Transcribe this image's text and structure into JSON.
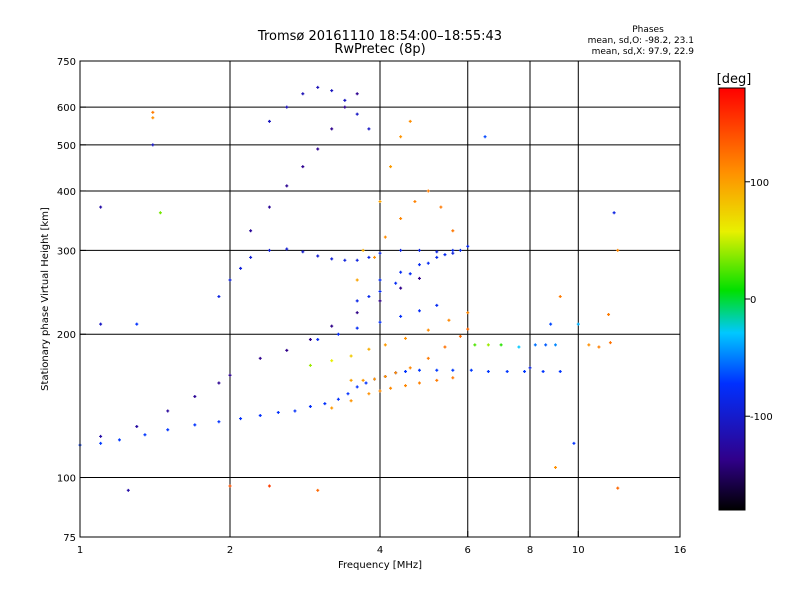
{
  "chart_data": {
    "type": "scatter",
    "title": "Tromsø 20161110 18:54:00–18:55:43",
    "subtitle": "RwPretec (8p)",
    "xlabel": "Frequency [MHz]",
    "ylabel": "Stationary phase Virtual Height [km]",
    "x_scale": "log",
    "y_scale": "log",
    "xlim": [
      1,
      16
    ],
    "ylim": [
      75,
      750
    ],
    "x_ticks": [
      1,
      2,
      4,
      6,
      8,
      10,
      16
    ],
    "x_tick_labels": [
      "1",
      "2",
      "4",
      "6",
      "8",
      "10",
      "16"
    ],
    "x_gridlines": [
      2,
      4,
      6,
      8,
      10
    ],
    "y_ticks": [
      75,
      100,
      200,
      300,
      400,
      500,
      600,
      750
    ],
    "y_tick_labels": [
      "75",
      "100",
      "200",
      "300",
      "400",
      "500",
      "600",
      "750"
    ],
    "y_gridlines": [
      100,
      200,
      300,
      400,
      500,
      600
    ],
    "grid": true,
    "stats": {
      "heading": "Phases",
      "o_line": "mean, sd,O:  -98.2, 23.1",
      "x_line": "mean, sd,X:   97.9, 22.9"
    },
    "colorbar": {
      "label": "[deg]",
      "range": [
        -180,
        180
      ],
      "ticks": [
        100,
        0,
        -100
      ],
      "tick_labels": [
        "100",
        "0",
        "-100"
      ],
      "colormap": "rainbow"
    },
    "series": [
      {
        "values": [
          [
            1.0,
            117,
            -95
          ],
          [
            1.1,
            118,
            -95
          ],
          [
            1.2,
            120,
            -96
          ],
          [
            1.35,
            123,
            -97
          ],
          [
            1.5,
            126,
            -98
          ],
          [
            1.7,
            129,
            -99
          ],
          [
            1.9,
            131,
            -100
          ],
          [
            2.1,
            133,
            -101
          ],
          [
            2.3,
            135,
            -101
          ],
          [
            2.5,
            137,
            -101
          ],
          [
            2.7,
            138,
            -102
          ],
          [
            2.9,
            141,
            -102
          ],
          [
            3.1,
            143,
            -101
          ],
          [
            3.3,
            146,
            -101
          ],
          [
            3.45,
            150,
            -100
          ],
          [
            3.6,
            155,
            -100
          ],
          [
            3.75,
            158,
            -99
          ],
          [
            3.9,
            161,
            -99
          ],
          [
            4.1,
            163,
            -99
          ],
          [
            4.3,
            166,
            -98
          ],
          [
            4.5,
            167,
            -98
          ],
          [
            4.8,
            168,
            -97
          ],
          [
            5.2,
            168,
            -96
          ],
          [
            5.6,
            168,
            -96
          ],
          [
            6.1,
            168,
            -96
          ],
          [
            6.6,
            167,
            -97
          ],
          [
            7.2,
            167,
            -97
          ],
          [
            7.8,
            167,
            -97
          ],
          [
            8.5,
            167,
            -98
          ],
          [
            9.2,
            167,
            -98
          ]
        ]
      },
      {
        "values": [
          [
            1.1,
            122,
            -130
          ],
          [
            1.3,
            128,
            -132
          ],
          [
            1.5,
            138,
            -134
          ],
          [
            1.7,
            148,
            -136
          ],
          [
            1.9,
            158,
            -137
          ],
          [
            2.0,
            164,
            -138
          ],
          [
            2.3,
            178,
            -139
          ],
          [
            2.6,
            185,
            -140
          ],
          [
            2.9,
            195,
            -140
          ],
          [
            3.2,
            208,
            -141
          ],
          [
            3.6,
            222,
            -141
          ],
          [
            4.0,
            235,
            -141
          ],
          [
            4.4,
            250,
            -140
          ],
          [
            4.8,
            262,
            -140
          ]
        ]
      },
      {
        "values": [
          [
            1.9,
            240,
            -110
          ],
          [
            2.0,
            260,
            -112
          ],
          [
            2.1,
            275,
            -113
          ],
          [
            2.2,
            290,
            -114
          ],
          [
            2.4,
            300,
            -115
          ],
          [
            2.6,
            302,
            -116
          ],
          [
            2.8,
            298,
            -117
          ],
          [
            3.0,
            292,
            -116
          ],
          [
            3.2,
            288,
            -114
          ],
          [
            3.4,
            286,
            -112
          ],
          [
            3.6,
            286,
            -111
          ],
          [
            3.8,
            290,
            -110
          ],
          [
            4.0,
            296,
            -110
          ],
          [
            4.4,
            300,
            -110
          ],
          [
            4.8,
            300,
            -111
          ],
          [
            5.2,
            298,
            -111
          ],
          [
            5.6,
            296,
            -112
          ]
        ]
      },
      {
        "values": [
          [
            2.2,
            330,
            -135
          ],
          [
            2.4,
            370,
            -136
          ],
          [
            2.6,
            410,
            -137
          ],
          [
            2.8,
            450,
            -138
          ],
          [
            3.0,
            490,
            -138
          ],
          [
            3.2,
            540,
            -139
          ],
          [
            3.4,
            600,
            -139
          ],
          [
            3.6,
            640,
            -138
          ]
        ]
      },
      {
        "values": [
          [
            2.4,
            560,
            -122
          ],
          [
            2.6,
            600,
            -124
          ],
          [
            2.8,
            640,
            -125
          ],
          [
            3.0,
            660,
            -124
          ],
          [
            3.2,
            650,
            -122
          ],
          [
            3.4,
            620,
            -121
          ],
          [
            3.6,
            580,
            -120
          ],
          [
            3.8,
            540,
            -120
          ]
        ]
      },
      {
        "values": [
          [
            3.6,
            235,
            -108
          ],
          [
            3.8,
            240,
            -106
          ],
          [
            4.0,
            246,
            -105
          ],
          [
            4.3,
            256,
            -104
          ],
          [
            4.6,
            268,
            -103
          ],
          [
            5.0,
            282,
            -104
          ],
          [
            5.4,
            294,
            -105
          ],
          [
            5.8,
            300,
            -106
          ]
        ]
      },
      {
        "values": [
          [
            3.0,
            195,
            -105
          ],
          [
            3.3,
            200,
            -104
          ],
          [
            3.6,
            206,
            -103
          ],
          [
            4.0,
            212,
            -102
          ],
          [
            4.4,
            218,
            -102
          ],
          [
            4.8,
            224,
            -103
          ],
          [
            5.2,
            230,
            -104
          ]
        ]
      },
      {
        "values": [
          [
            2.9,
            172,
            40
          ],
          [
            3.2,
            176,
            60
          ],
          [
            3.5,
            180,
            80
          ],
          [
            3.8,
            186,
            95
          ],
          [
            4.1,
            190,
            105
          ],
          [
            4.5,
            196,
            110
          ],
          [
            5.0,
            204,
            112
          ],
          [
            5.5,
            214,
            114
          ],
          [
            6.0,
            222,
            115
          ]
        ]
      },
      {
        "values": [
          [
            3.5,
            160,
            100
          ],
          [
            3.7,
            160,
            105
          ],
          [
            3.9,
            161,
            108
          ],
          [
            4.1,
            163,
            110
          ],
          [
            4.3,
            166,
            112
          ],
          [
            4.6,
            170,
            115
          ],
          [
            5.0,
            178,
            120
          ],
          [
            5.4,
            188,
            125
          ],
          [
            5.8,
            198,
            128
          ],
          [
            6.0,
            205,
            130
          ]
        ]
      },
      {
        "values": [
          [
            3.2,
            140,
            105
          ],
          [
            3.5,
            145,
            108
          ],
          [
            3.8,
            150,
            110
          ],
          [
            4.0,
            152,
            112
          ],
          [
            4.2,
            154,
            113
          ],
          [
            4.5,
            156,
            115
          ],
          [
            4.8,
            158,
            118
          ],
          [
            5.2,
            160,
            120
          ],
          [
            5.6,
            162,
            122
          ]
        ]
      },
      {
        "values": [
          [
            3.6,
            260,
            100
          ],
          [
            3.9,
            290,
            110
          ],
          [
            4.1,
            320,
            112
          ],
          [
            4.4,
            350,
            115
          ],
          [
            4.7,
            380,
            117
          ],
          [
            5.0,
            400,
            119
          ],
          [
            5.3,
            370,
            121
          ],
          [
            5.6,
            330,
            122
          ]
        ]
      },
      {
        "values": [
          [
            3.7,
            300,
            95
          ],
          [
            4.0,
            380,
            100
          ],
          [
            4.2,
            450,
            104
          ],
          [
            4.4,
            520,
            108
          ],
          [
            4.6,
            560,
            111
          ]
        ]
      },
      {
        "values": [
          [
            4.0,
            260,
            -103
          ],
          [
            4.4,
            270,
            -104
          ],
          [
            4.8,
            280,
            -105
          ],
          [
            5.2,
            290,
            -106
          ],
          [
            5.6,
            300,
            -106
          ],
          [
            6.0,
            306,
            -107
          ]
        ]
      },
      {
        "values": [
          [
            6.2,
            190,
            20
          ],
          [
            6.6,
            190,
            40
          ],
          [
            7.0,
            190,
            10
          ],
          [
            7.6,
            188,
            -30
          ],
          [
            8.2,
            190,
            -70
          ],
          [
            8.6,
            190,
            -80
          ],
          [
            9.0,
            190,
            -60
          ],
          [
            10.5,
            190,
            110
          ],
          [
            11.0,
            188,
            118
          ],
          [
            11.6,
            192,
            125
          ]
        ]
      },
      {
        "values": [
          [
            1.4,
            585,
            120
          ],
          [
            1.4,
            570,
            110
          ],
          [
            1.4,
            500,
            -120
          ],
          [
            1.45,
            360,
            30
          ],
          [
            1.1,
            370,
            -130
          ],
          [
            1.1,
            210,
            -120
          ],
          [
            1.25,
            94,
            -130
          ],
          [
            2.0,
            96,
            140
          ],
          [
            2.4,
            96,
            150
          ],
          [
            3.0,
            94,
            130
          ],
          [
            9.0,
            105,
            110
          ],
          [
            9.8,
            118,
            -100
          ],
          [
            12.0,
            95,
            130
          ],
          [
            12.0,
            300,
            115
          ],
          [
            11.5,
            220,
            120
          ],
          [
            9.2,
            240,
            120
          ],
          [
            10.0,
            210,
            -40
          ],
          [
            11.8,
            360,
            -110
          ],
          [
            6.5,
            520,
            -90
          ],
          [
            8.0,
            170,
            -110
          ],
          [
            8.8,
            210,
            -90
          ],
          [
            1.3,
            210,
            -100
          ]
        ]
      }
    ]
  }
}
